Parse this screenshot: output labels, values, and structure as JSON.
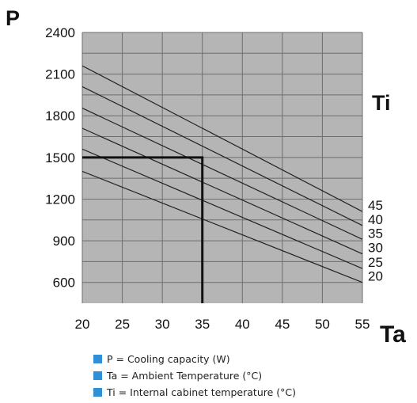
{
  "chart_data": {
    "type": "line",
    "x_title": "Ta",
    "y_title": "P",
    "series_title": "Ti",
    "x_ticks": [
      20,
      25,
      30,
      35,
      40,
      45,
      50,
      55
    ],
    "y_ticks": [
      600,
      900,
      1200,
      1500,
      1800,
      2100,
      2400
    ],
    "xlim": [
      20,
      55
    ],
    "ylim": [
      450,
      2400
    ],
    "grid": true,
    "series": [
      {
        "name": "20",
        "points": [
          [
            20,
            1400
          ],
          [
            55,
            600
          ]
        ]
      },
      {
        "name": "25",
        "points": [
          [
            20,
            1560
          ],
          [
            55,
            700
          ]
        ]
      },
      {
        "name": "30",
        "points": [
          [
            20,
            1710
          ],
          [
            55,
            805
          ]
        ]
      },
      {
        "name": "35",
        "points": [
          [
            20,
            1855
          ],
          [
            55,
            910
          ]
        ]
      },
      {
        "name": "40",
        "points": [
          [
            20,
            2010
          ],
          [
            55,
            1010
          ]
        ]
      },
      {
        "name": "45",
        "points": [
          [
            20,
            2160
          ],
          [
            55,
            1110
          ]
        ]
      }
    ],
    "highlight": {
      "x": 35,
      "y": 1500
    },
    "legend": [
      "P = Cooling capacity (W)",
      "Ta = Ambient Temperature (°C)",
      "Ti = Internal cabinet temperature (°C)"
    ],
    "colors": {
      "plot_background": "#b5b5b5",
      "grid": "#6e6e6e",
      "lines": "#222222",
      "highlight": "#111111",
      "legend_swatch": "#2f8fd8"
    }
  }
}
